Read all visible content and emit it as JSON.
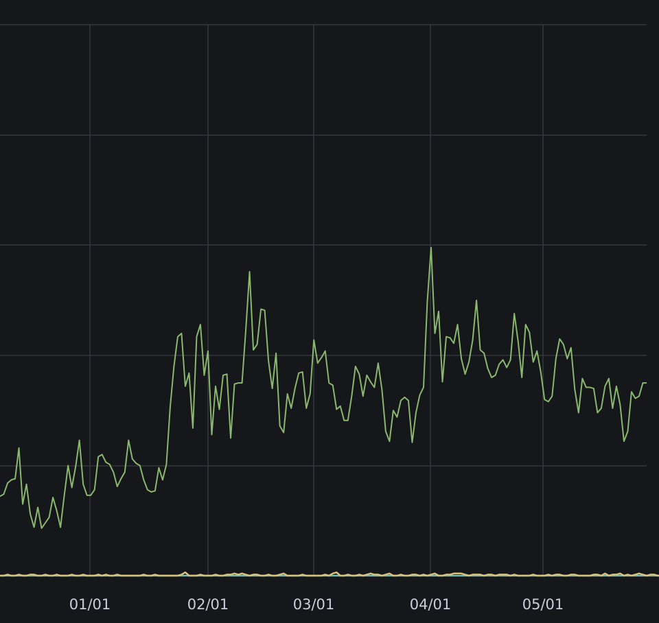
{
  "chart_data": {
    "type": "line",
    "title": "",
    "xlabel": "",
    "ylabel": "",
    "x_tick_labels": [
      "01/01",
      "02/01",
      "03/01",
      "04/01",
      "05/01"
    ],
    "grid": true,
    "legend": "none",
    "y_ticks_visible": false,
    "colors": {
      "background": "#16171b",
      "grid": "#3a3c42",
      "text": "#ccccdc"
    },
    "series": [
      {
        "color": "#8ab86e",
        "values": [
          0.72,
          0.74,
          0.84,
          0.87,
          0.88,
          1.16,
          0.65,
          0.83,
          0.56,
          0.44,
          0.62,
          0.43,
          0.48,
          0.53,
          0.71,
          0.59,
          0.44,
          0.73,
          1.0,
          0.8,
          0.99,
          1.23,
          0.83,
          0.73,
          0.73,
          0.78,
          1.08,
          1.1,
          1.03,
          1.01,
          0.94,
          0.81,
          0.88,
          0.94,
          1.23,
          1.06,
          1.02,
          1.0,
          0.87,
          0.78,
          0.76,
          0.77,
          0.98,
          0.87,
          1.01,
          1.53,
          1.9,
          2.17,
          2.2,
          1.72,
          1.84,
          1.34,
          2.17,
          2.28,
          1.82,
          2.04,
          1.28,
          1.72,
          1.51,
          1.82,
          1.83,
          1.25,
          1.74,
          1.75,
          1.75,
          2.23,
          2.76,
          2.05,
          2.1,
          2.42,
          2.41,
          1.95,
          1.7,
          2.02,
          1.36,
          1.3,
          1.65,
          1.52,
          1.7,
          1.84,
          1.85,
          1.52,
          1.65,
          2.14,
          1.93,
          1.98,
          2.04,
          1.75,
          1.73,
          1.51,
          1.54,
          1.41,
          1.41,
          1.63,
          1.9,
          1.83,
          1.63,
          1.82,
          1.76,
          1.71,
          1.93,
          1.69,
          1.31,
          1.22,
          1.5,
          1.44,
          1.59,
          1.62,
          1.59,
          1.21,
          1.48,
          1.64,
          1.71,
          2.49,
          2.98,
          2.2,
          2.4,
          1.76,
          2.17,
          2.16,
          2.11,
          2.28,
          1.97,
          1.83,
          1.94,
          2.14,
          2.5,
          2.05,
          2.02,
          1.88,
          1.8,
          1.82,
          1.92,
          1.96,
          1.89,
          1.96,
          2.38,
          2.13,
          1.8,
          2.28,
          2.21,
          1.94,
          2.04,
          1.85,
          1.6,
          1.58,
          1.63,
          1.97,
          2.15,
          2.1,
          1.97,
          2.07,
          1.69,
          1.48,
          1.79,
          1.71,
          1.71,
          1.7,
          1.48,
          1.52,
          1.72,
          1.79,
          1.52,
          1.72,
          1.55,
          1.22,
          1.31,
          1.67,
          1.61,
          1.63,
          1.75,
          1.75
        ]
      },
      {
        "color": "#d9c27a",
        "values": [
          0.0,
          0.0,
          0.01,
          0.0,
          0.0,
          0.01,
          0.0,
          0.0,
          0.01,
          0.01,
          0.0,
          0.0,
          0.01,
          0.0,
          0.0,
          0.01,
          0.0,
          0.0,
          0.0,
          0.01,
          0.0,
          0.0,
          0.01,
          0.0,
          0.0,
          0.0,
          0.01,
          0.0,
          0.01,
          0.0,
          0.0,
          0.01,
          0.0,
          0.0,
          0.0,
          0.0,
          0.0,
          0.0,
          0.01,
          0.0,
          0.0,
          0.01,
          0.0,
          0.0,
          0.0,
          0.0,
          0.0,
          0.0,
          0.01,
          0.03,
          0.0,
          0.0,
          0.0,
          0.01,
          0.0,
          0.0,
          0.0,
          0.01,
          0.0,
          0.0,
          0.01,
          0.01,
          0.02,
          0.01,
          0.02,
          0.01,
          0.0,
          0.01,
          0.01,
          0.0,
          0.0,
          0.01,
          0.0,
          0.0,
          0.01,
          0.02,
          0.0,
          0.0,
          0.0,
          0.0,
          0.01,
          0.0,
          0.0,
          0.0,
          0.0,
          0.0,
          0.01,
          0.0,
          0.02,
          0.03,
          0.0,
          0.0,
          0.01,
          0.0,
          0.0,
          0.01,
          0.0,
          0.01,
          0.02,
          0.01,
          0.01,
          0.0,
          0.01,
          0.02,
          0.0,
          0.0,
          0.01,
          0.0,
          0.0,
          0.01,
          0.01,
          0.0,
          0.01,
          0.0,
          0.01,
          0.02,
          0.0,
          0.0,
          0.01,
          0.01,
          0.02,
          0.02,
          0.02,
          0.01,
          0.0,
          0.01,
          0.01,
          0.01,
          0.0,
          0.01,
          0.01,
          0.0,
          0.01,
          0.01,
          0.01,
          0.0,
          0.01,
          0.0,
          0.0,
          0.0,
          0.0,
          0.01,
          0.0,
          0.0,
          0.0,
          0.01,
          0.0,
          0.01,
          0.01,
          0.0,
          0.0,
          0.01,
          0.01,
          0.0,
          0.0,
          0.0,
          0.0,
          0.01,
          0.01,
          0.0,
          0.02,
          0.0,
          0.01,
          0.01,
          0.02,
          0.0,
          0.01,
          0.0,
          0.01,
          0.02,
          0.01,
          0.0,
          0.01,
          0.01,
          0.0,
          0.0,
          0.0,
          0.0,
          0.01,
          0.02,
          0.0,
          0.01,
          0.01
        ]
      },
      {
        "color": "#73bfb8",
        "values": [
          0.0,
          0.0,
          0.0,
          0.0,
          0.0,
          0.0,
          0.0,
          0.0,
          0.0,
          0.0,
          0.0,
          0.0,
          0.0,
          0.0,
          0.0,
          0.0,
          0.0,
          0.0,
          0.0,
          0.0,
          0.0,
          0.0,
          0.0,
          0.0,
          0.0,
          0.0,
          0.0,
          0.0,
          0.0,
          0.0,
          0.0,
          0.0,
          0.0,
          0.0,
          0.0,
          0.0,
          0.0,
          0.0,
          0.0,
          0.0,
          0.0,
          0.0,
          0.0,
          0.0,
          0.0,
          0.0,
          0.0,
          0.0,
          0.0,
          0.0,
          0.0,
          0.0,
          0.0,
          0.0,
          0.0,
          0.0,
          0.0,
          0.0,
          0.0,
          0.0,
          0.0,
          0.0,
          0.0,
          0.0,
          0.0,
          0.0,
          0.0,
          0.0,
          0.0,
          0.0,
          0.0,
          0.0,
          0.0,
          0.0,
          0.0,
          0.0,
          0.0,
          0.0,
          0.0,
          0.0,
          0.0,
          0.0,
          0.0,
          0.0,
          0.0,
          0.0,
          0.0,
          0.0,
          0.0,
          0.0,
          0.0,
          0.0,
          0.0,
          0.0,
          0.0,
          0.0,
          0.0,
          0.0,
          0.0,
          0.0,
          0.0,
          0.0,
          0.0,
          0.0,
          0.0,
          0.0,
          0.0,
          0.0,
          0.0,
          0.0,
          0.0,
          0.0,
          0.0,
          0.0,
          0.0,
          0.0,
          0.0,
          0.0,
          0.0,
          0.0,
          0.0,
          0.0,
          0.0,
          0.0,
          0.0,
          0.0,
          0.0,
          0.0,
          0.0,
          0.0,
          0.0,
          0.0,
          0.0,
          0.0,
          0.0,
          0.0,
          0.0,
          0.0,
          0.0,
          0.0,
          0.0,
          0.0,
          0.0,
          0.0,
          0.0,
          0.0,
          0.0,
          0.0,
          0.0,
          0.0,
          0.0,
          0.0,
          0.0,
          0.0,
          0.0,
          0.0,
          0.0,
          0.0,
          0.0,
          0.0,
          0.0,
          0.0,
          0.0,
          0.0,
          0.0,
          0.0,
          0.0,
          0.0,
          0.0,
          0.0,
          0.0,
          0.0,
          0.0,
          0.0,
          0.0,
          0.0,
          0.0,
          0.0,
          0.0,
          0.0,
          0.0,
          0.0,
          0.0,
          0.0,
          0.0
        ]
      }
    ]
  }
}
